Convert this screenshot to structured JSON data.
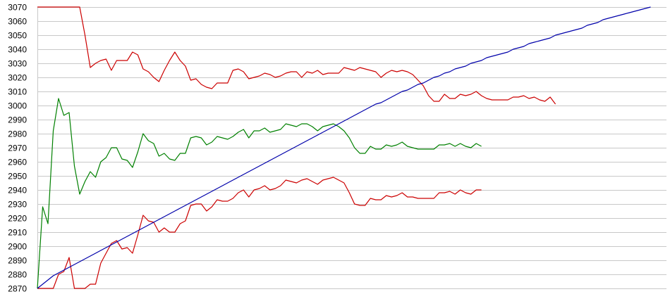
{
  "chart_data": {
    "type": "line",
    "title": "",
    "xlabel": "",
    "ylabel": "",
    "ylim": [
      2870,
      3070
    ],
    "y_ticks": [
      "3070",
      "3060",
      "3050",
      "3040",
      "3030",
      "3020",
      "3010",
      "3000",
      "2990",
      "2980",
      "2970",
      "2960",
      "2950",
      "2940",
      "2930",
      "2920",
      "2910",
      "2900",
      "2890",
      "2880",
      "2870"
    ],
    "grid": "horizontal",
    "legend": "none",
    "x_count": 120,
    "series": [
      {
        "color": "#cc0000",
        "values": [
          3070,
          3070,
          3070,
          3070,
          3070,
          3070,
          3070,
          3070,
          3070,
          3050,
          3027,
          3030,
          3032,
          3033,
          3025,
          3032,
          3032,
          3032,
          3038,
          3036,
          3026,
          3024,
          3020,
          3017,
          3025,
          3032,
          3038,
          3032,
          3028,
          3018,
          3019,
          3015,
          3013,
          3012,
          3016,
          3016,
          3016,
          3025,
          3026,
          3024,
          3019,
          3020,
          3021,
          3023,
          3022,
          3020,
          3021,
          3023,
          3024,
          3024,
          3020,
          3024,
          3023,
          3025,
          3022,
          3023,
          3023,
          3023,
          3027,
          3026,
          3025,
          3027,
          3026,
          3025,
          3024,
          3020,
          3023,
          3025,
          3024,
          3025,
          3024,
          3022,
          3018,
          3014,
          3007,
          3003,
          3003,
          3008,
          3005,
          3005,
          3008,
          3007,
          3008,
          3010,
          3007,
          3005,
          3004,
          3004,
          3004,
          3004,
          3006,
          3006,
          3007,
          3005,
          3006,
          3004,
          3003,
          3006,
          3001
        ]
      },
      {
        "color": "#008000",
        "values": [
          2870,
          2928,
          2916,
          2982,
          3005,
          2993,
          2995,
          2957,
          2937,
          2946,
          2953,
          2949,
          2960,
          2963,
          2970,
          2970,
          2962,
          2961,
          2956,
          2967,
          2980,
          2975,
          2973,
          2964,
          2966,
          2962,
          2961,
          2966,
          2966,
          2977,
          2978,
          2977,
          2972,
          2974,
          2978,
          2977,
          2976,
          2978,
          2981,
          2983,
          2977,
          2982,
          2982,
          2984,
          2981,
          2982,
          2983,
          2987,
          2986,
          2985,
          2987,
          2987,
          2985,
          2982,
          2985,
          2986,
          2987,
          2985,
          2982,
          2977,
          2970,
          2966,
          2966,
          2971,
          2969,
          2969,
          2972,
          2971,
          2972,
          2974,
          2971,
          2970,
          2969,
          2969,
          2969,
          2969,
          2972,
          2972,
          2973,
          2971,
          2973,
          2971,
          2970,
          2973,
          2971
        ]
      },
      {
        "color": "#cc0000",
        "values": [
          2870,
          2870,
          2870,
          2870,
          2880,
          2882,
          2892,
          2870,
          2870,
          2870,
          2873,
          2873,
          2888,
          2895,
          2902,
          2904,
          2898,
          2899,
          2895,
          2908,
          2922,
          2918,
          2917,
          2910,
          2913,
          2910,
          2910,
          2916,
          2918,
          2929,
          2930,
          2930,
          2925,
          2928,
          2933,
          2932,
          2932,
          2934,
          2938,
          2940,
          2935,
          2940,
          2941,
          2943,
          2940,
          2941,
          2943,
          2947,
          2946,
          2945,
          2947,
          2948,
          2946,
          2944,
          2947,
          2948,
          2949,
          2947,
          2945,
          2938,
          2930,
          2929,
          2929,
          2934,
          2933,
          2933,
          2936,
          2935,
          2936,
          2938,
          2935,
          2935,
          2934,
          2934,
          2934,
          2934,
          2938,
          2938,
          2939,
          2937,
          2940,
          2938,
          2937,
          2940,
          2940
        ]
      },
      {
        "color": "#0000aa",
        "values": [
          2870,
          2873,
          2876,
          2879,
          2881,
          2883,
          2885,
          2887,
          2889,
          2891,
          2893,
          2895,
          2897,
          2899,
          2901,
          2903,
          2905,
          2907,
          2909,
          2911,
          2913,
          2915,
          2917,
          2919,
          2921,
          2923,
          2925,
          2927,
          2929,
          2931,
          2933,
          2935,
          2937,
          2939,
          2941,
          2943,
          2945,
          2947,
          2949,
          2951,
          2953,
          2955,
          2957,
          2959,
          2961,
          2963,
          2965,
          2967,
          2969,
          2971,
          2973,
          2975,
          2977,
          2979,
          2981,
          2983,
          2985,
          2987,
          2989,
          2991,
          2993,
          2995,
          2997,
          2999,
          3001,
          3002,
          3004,
          3006,
          3008,
          3010,
          3011,
          3013,
          3015,
          3016,
          3018,
          3020,
          3021,
          3023,
          3024,
          3026,
          3027,
          3028,
          3030,
          3031,
          3032,
          3034,
          3035,
          3036,
          3037,
          3038,
          3040,
          3041,
          3042,
          3044,
          3045,
          3046,
          3047,
          3048,
          3050,
          3051,
          3052,
          3053,
          3054,
          3055,
          3057,
          3058,
          3059,
          3061,
          3062,
          3063,
          3064,
          3065,
          3066,
          3067,
          3068,
          3069,
          3070
        ]
      }
    ]
  }
}
